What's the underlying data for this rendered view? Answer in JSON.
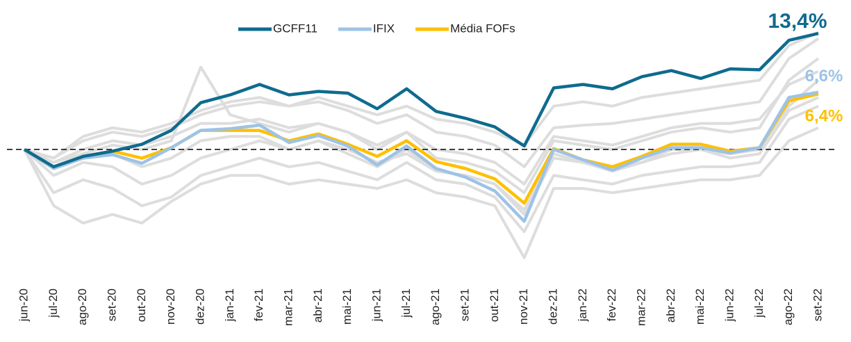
{
  "chart_data": {
    "type": "line",
    "categories": [
      "jun-20",
      "jul-20",
      "ago-20",
      "set-20",
      "out-20",
      "nov-20",
      "dez-20",
      "jan-21",
      "fev-21",
      "mar-21",
      "abr-21",
      "mai-21",
      "jun-21",
      "jul-21",
      "ago-21",
      "set-21",
      "out-21",
      "nov-21",
      "dez-21",
      "jan-22",
      "fev-22",
      "mar-22",
      "abr-22",
      "mai-22",
      "jun-22",
      "jul-22",
      "ago-22",
      "set-22"
    ],
    "series": [
      {
        "name": "GCFF11",
        "color": "#0f6b8e",
        "values": [
          0,
          -2.0,
          -0.8,
          -0.2,
          0.6,
          2.2,
          5.4,
          6.3,
          7.5,
          6.3,
          6.7,
          6.5,
          4.7,
          7.0,
          4.4,
          3.6,
          2.6,
          0.4,
          7.1,
          7.5,
          7.0,
          8.4,
          9.1,
          8.2,
          9.3,
          9.2,
          12.6,
          13.4
        ],
        "value_labels": [
          null,
          null,
          null,
          null,
          null,
          null,
          null,
          null,
          null,
          null,
          null,
          null,
          null,
          null,
          null,
          null,
          null,
          null,
          null,
          null,
          null,
          null,
          null,
          null,
          null,
          null,
          null,
          "13,4%"
        ]
      },
      {
        "name": "IFIX",
        "color": "#9dc3e6",
        "values": [
          0,
          -2.2,
          -1.0,
          -0.6,
          -1.6,
          0.2,
          2.2,
          2.4,
          2.8,
          0.8,
          1.6,
          0.4,
          -1.8,
          0.4,
          -2.2,
          -3.2,
          -4.8,
          -8.3,
          0,
          -1.2,
          -2.4,
          -1.0,
          0.2,
          0.2,
          -0.4,
          0.2,
          6.0,
          6.6
        ],
        "value_labels": [
          null,
          null,
          null,
          null,
          null,
          null,
          null,
          null,
          null,
          null,
          null,
          null,
          null,
          null,
          null,
          null,
          null,
          null,
          null,
          null,
          null,
          null,
          null,
          null,
          null,
          null,
          null,
          "6,6%"
        ]
      },
      {
        "name": "Média FOFs",
        "color": "#ffc000",
        "values": [
          0,
          -2.2,
          -0.8,
          -0.2,
          -1.0,
          0.2,
          2.2,
          2.2,
          2.2,
          1.0,
          1.8,
          0.6,
          -0.8,
          1.0,
          -1.4,
          -2.2,
          -3.4,
          -6.2,
          0.1,
          -1.2,
          -2.0,
          -0.8,
          0.6,
          0.6,
          -0.2,
          0.2,
          5.6,
          6.4
        ],
        "value_labels": [
          null,
          null,
          null,
          null,
          null,
          null,
          null,
          null,
          null,
          null,
          null,
          null,
          null,
          null,
          null,
          null,
          null,
          null,
          null,
          null,
          null,
          null,
          null,
          null,
          null,
          null,
          null,
          "6,4%"
        ]
      }
    ],
    "background_series": [
      {
        "color": "#dddddd",
        "values": [
          0,
          -1,
          1,
          2,
          1.5,
          2.5,
          4,
          5,
          5.5,
          5,
          5.5,
          4.5,
          3,
          4,
          2,
          1.5,
          0.5,
          -2,
          2.5,
          2.8,
          3,
          3.5,
          4,
          4.5,
          5,
          5.5,
          10.5,
          12.8
        ]
      },
      {
        "color": "#dddddd",
        "values": [
          0,
          -1.5,
          -0.5,
          0.5,
          0,
          1,
          9.5,
          4,
          3,
          2,
          3,
          2,
          0,
          2,
          -1,
          -1.5,
          -2.5,
          -5,
          1,
          0.5,
          0,
          1,
          2,
          2.5,
          2,
          2.5,
          8,
          10.5
        ]
      },
      {
        "color": "#dddddd",
        "values": [
          0,
          -3,
          -1.5,
          -2,
          -4,
          -3,
          -1,
          0,
          1,
          0,
          1,
          0,
          -1.5,
          -0.5,
          -2.5,
          -3,
          -4,
          -7.5,
          -1,
          -1.5,
          -2,
          -1.5,
          -0.5,
          0,
          -0.5,
          0,
          5,
          8
        ]
      },
      {
        "color": "#dddddd",
        "values": [
          0,
          -6.5,
          -8.5,
          -7.5,
          -8.5,
          -6,
          -4,
          -3,
          -3,
          -4,
          -3.5,
          -4,
          -4.5,
          -3.5,
          -5,
          -5.5,
          -6.5,
          -12.5,
          -4.5,
          -4.5,
          -5,
          -4.5,
          -4,
          -3.5,
          -3.5,
          -3,
          1,
          2.5
        ]
      },
      {
        "color": "#dddddd",
        "values": [
          0,
          -5,
          -3.5,
          -4.5,
          -6.5,
          -5.5,
          -3,
          -2,
          -1,
          -2,
          -1.5,
          -2.5,
          -3.5,
          -1.5,
          -3.5,
          -4,
          -5.5,
          -9.5,
          -3,
          -3.5,
          -4,
          -3,
          -2.5,
          -2,
          -2,
          -1.5,
          3.5,
          5
        ]
      },
      {
        "color": "#dddddd",
        "values": [
          0,
          -1,
          1.5,
          2.5,
          2,
          3,
          4.5,
          5.5,
          6,
          5,
          6,
          5,
          4,
          5,
          3.5,
          3,
          2,
          0.5,
          5,
          5.5,
          5,
          6,
          6.5,
          7,
          7.5,
          8,
          12,
          13.5
        ]
      },
      {
        "color": "#dddddd",
        "values": [
          0,
          -2,
          -1,
          -0.5,
          -2,
          -1,
          1,
          1.5,
          1.5,
          0,
          1,
          -0.5,
          -2,
          0,
          -2.5,
          -3,
          -4,
          -7,
          -0.5,
          -1.5,
          -2.5,
          -1.5,
          0,
          0,
          -1,
          -0.5,
          4.5,
          6
        ]
      },
      {
        "color": "#dddddd",
        "values": [
          0,
          -1.5,
          0,
          1,
          0.5,
          1.5,
          3,
          3,
          3.5,
          2.5,
          3,
          2,
          0.5,
          2,
          0,
          -0.5,
          -1.5,
          -4,
          1.5,
          1,
          0.5,
          1.5,
          2.5,
          3,
          3,
          3.5,
          7.5,
          9
        ]
      }
    ],
    "ylim": [
      -13,
      14.5
    ],
    "reference_line": 0,
    "legend": "top"
  }
}
